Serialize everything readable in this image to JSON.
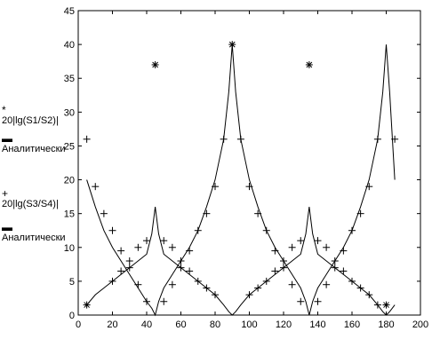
{
  "chart_data": {
    "type": "line",
    "title": "",
    "xlabel": "",
    "ylabel": "",
    "xlim": [
      0,
      200
    ],
    "ylim": [
      0,
      45
    ],
    "xticks": [
      0,
      20,
      40,
      60,
      80,
      100,
      120,
      140,
      160,
      180,
      200
    ],
    "yticks": [
      0,
      5,
      10,
      15,
      20,
      25,
      30,
      35,
      40,
      45
    ],
    "grid": false,
    "series": [
      {
        "name": "20|lg(S1/S2)|",
        "marker": "*",
        "x": [
          5,
          45,
          90,
          135,
          180
        ],
        "y": [
          1.5,
          37,
          40,
          37,
          1.5
        ]
      },
      {
        "name": "Аналитически",
        "style": "line",
        "x": [
          5,
          10,
          15,
          20,
          25,
          30,
          35,
          40,
          43,
          45,
          47,
          50,
          55,
          60,
          65,
          70,
          75,
          80,
          85,
          88,
          90,
          92,
          95,
          100,
          105,
          110,
          115,
          120,
          125,
          130,
          133,
          135,
          137,
          140,
          145,
          150,
          155,
          160,
          165,
          170,
          175,
          178,
          180,
          182,
          185
        ],
        "y": [
          1.5,
          3,
          4,
          5,
          6,
          7,
          8,
          9,
          12,
          16,
          12,
          9,
          8,
          7,
          6,
          5,
          4,
          3,
          1.5,
          0.5,
          0,
          0.5,
          1.5,
          3,
          4,
          5,
          6,
          7,
          8,
          9,
          12,
          16,
          12,
          9,
          8,
          7,
          6,
          5,
          4,
          3,
          1.5,
          0.5,
          0,
          0.5,
          1.5
        ]
      },
      {
        "name": "20|lg(S3/S4)|",
        "marker": "+",
        "x": [
          5,
          10,
          15,
          20,
          25,
          30,
          35,
          40,
          50,
          55,
          60,
          65,
          70,
          75,
          80,
          85,
          95,
          100,
          105,
          110,
          115,
          120,
          125,
          130,
          140,
          145,
          150,
          155,
          160,
          165,
          170,
          175,
          185
        ],
        "y": [
          26,
          19,
          15,
          12.5,
          9.5,
          7,
          4.5,
          2,
          2,
          4.5,
          7,
          9.5,
          12.5,
          15,
          19,
          26,
          26,
          19,
          15,
          12.5,
          9.5,
          7,
          4.5,
          2,
          2,
          4.5,
          7,
          9.5,
          12.5,
          15,
          19,
          26,
          26
        ]
      },
      {
        "name": "Аналитически",
        "style": "line",
        "x": [
          5,
          10,
          15,
          20,
          25,
          30,
          35,
          40,
          43,
          45,
          47,
          50,
          55,
          60,
          65,
          70,
          75,
          80,
          85,
          88,
          90,
          92,
          95,
          100,
          105,
          110,
          115,
          120,
          125,
          130,
          133,
          135,
          137,
          140,
          145,
          150,
          155,
          160,
          165,
          170,
          175,
          178,
          180,
          182,
          185
        ],
        "y": [
          20,
          16,
          12.5,
          10,
          8,
          6,
          4,
          2,
          1,
          0,
          2,
          4,
          6,
          8,
          10,
          12.5,
          16,
          20,
          26,
          33,
          40,
          33,
          26,
          20,
          16,
          12.5,
          10,
          8,
          6,
          4,
          2,
          0,
          2,
          4,
          6,
          8,
          10,
          12.5,
          16,
          20,
          26,
          33,
          40,
          33,
          20
        ]
      }
    ],
    "extra_markers": {
      "star_points_x": [
        20,
        25,
        30,
        35,
        40,
        50,
        55,
        60,
        65,
        70,
        75,
        80,
        100,
        105,
        110,
        115,
        120,
        125,
        130,
        140,
        145,
        150,
        155,
        160,
        165,
        170,
        175
      ],
      "star_points_y": [
        5,
        6.5,
        8,
        10,
        11,
        11,
        10,
        8,
        6.5,
        5,
        4,
        3,
        3,
        4,
        5,
        6.5,
        8,
        10,
        11,
        11,
        10,
        8,
        6.5,
        5,
        4,
        3,
        1.5
      ]
    }
  },
  "legend": {
    "entries": [
      {
        "symbol": "*",
        "label": "20|lg(S1/S2)|"
      },
      {
        "symbol": "▬",
        "label": "Аналитически"
      },
      {
        "symbol": "+",
        "label": "20|lg(S3/S4)|"
      },
      {
        "symbol": "▬",
        "label": "Аналитически"
      }
    ]
  }
}
